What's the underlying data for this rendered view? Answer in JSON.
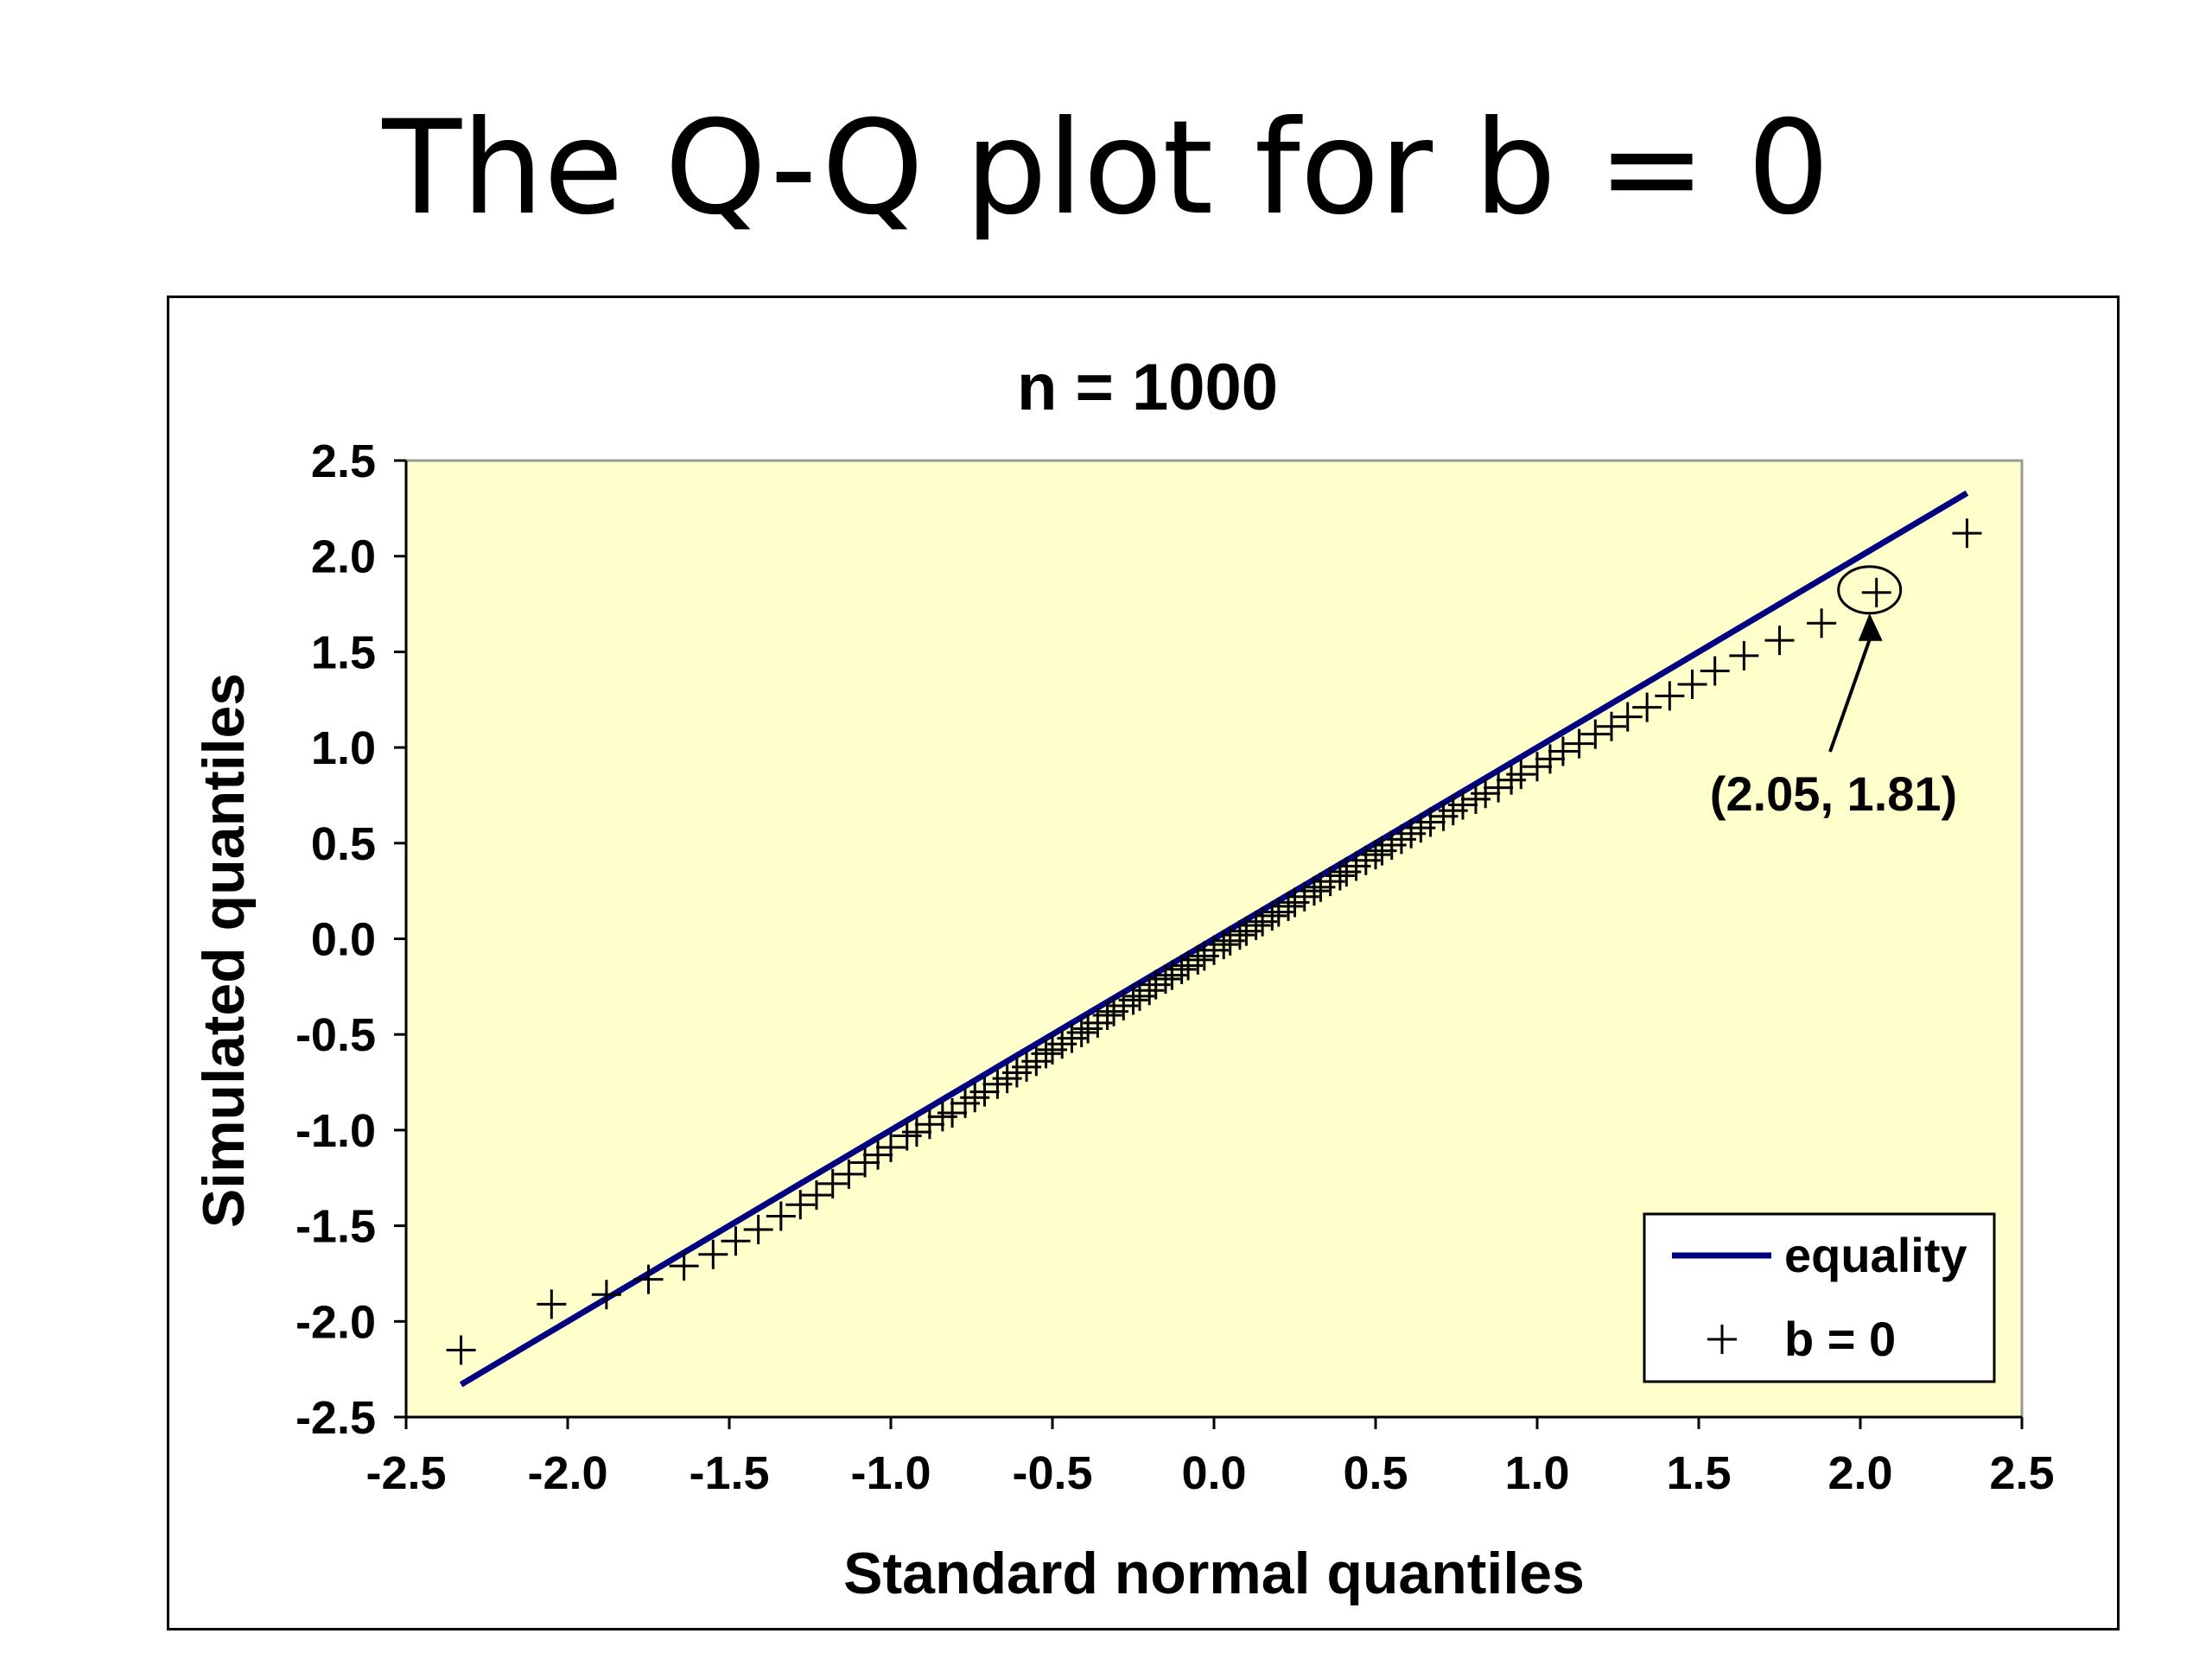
{
  "slide": {
    "title": "The Q-Q plot for b = 0"
  },
  "chart_data": {
    "type": "scatter",
    "title": "n = 1000",
    "xlabel": "Standard normal quantiles",
    "ylabel": "Simulated quantiles",
    "xlim": [
      -2.5,
      2.5
    ],
    "ylim": [
      -2.5,
      2.5
    ],
    "xticks": [
      "-2.5",
      "-2.0",
      "-1.5",
      "-1.0",
      "-0.5",
      "0.0",
      "0.5",
      "1.0",
      "1.5",
      "2.0",
      "2.5"
    ],
    "yticks": [
      "2.5",
      "2.0",
      "1.5",
      "1.0",
      "0.5",
      "0.0",
      "-0.5",
      "-1.0",
      "-1.5",
      "-2.0",
      "-2.5"
    ],
    "plot_background": "#FFFFCC",
    "legend_position": "bottom-right",
    "series": [
      {
        "name": "equality",
        "kind": "line",
        "color": "#000080",
        "x": [
          -2.33,
          2.33
        ],
        "y": [
          -2.33,
          2.33
        ]
      },
      {
        "name": "b = 0",
        "kind": "marker",
        "marker": "+",
        "color": "#000000",
        "x": [
          -2.33,
          -2.05,
          -1.88,
          -1.75,
          -1.64,
          -1.55,
          -1.48,
          -1.41,
          -1.34,
          -1.28,
          -1.23,
          -1.18,
          -1.13,
          -1.08,
          -1.04,
          -1.0,
          -0.95,
          -0.92,
          -0.88,
          -0.84,
          -0.81,
          -0.77,
          -0.74,
          -0.71,
          -0.67,
          -0.64,
          -0.61,
          -0.58,
          -0.55,
          -0.52,
          -0.5,
          -0.47,
          -0.44,
          -0.41,
          -0.39,
          -0.36,
          -0.33,
          -0.31,
          -0.28,
          -0.25,
          -0.23,
          -0.2,
          -0.18,
          -0.15,
          -0.13,
          -0.1,
          -0.08,
          -0.05,
          -0.03,
          0.0,
          0.03,
          0.05,
          0.08,
          0.1,
          0.13,
          0.15,
          0.18,
          0.2,
          0.23,
          0.25,
          0.28,
          0.31,
          0.33,
          0.36,
          0.39,
          0.41,
          0.44,
          0.47,
          0.5,
          0.52,
          0.55,
          0.58,
          0.61,
          0.64,
          0.67,
          0.71,
          0.74,
          0.77,
          0.81,
          0.84,
          0.88,
          0.92,
          0.95,
          1.0,
          1.04,
          1.08,
          1.13,
          1.18,
          1.23,
          1.28,
          1.34,
          1.41,
          1.48,
          1.55,
          1.64,
          1.75,
          1.88,
          2.05,
          2.33
        ],
        "y": [
          -2.15,
          -1.91,
          -1.86,
          -1.78,
          -1.71,
          -1.65,
          -1.58,
          -1.52,
          -1.45,
          -1.39,
          -1.34,
          -1.28,
          -1.23,
          -1.17,
          -1.13,
          -1.09,
          -1.03,
          -1.01,
          -0.97,
          -0.93,
          -0.91,
          -0.86,
          -0.83,
          -0.8,
          -0.76,
          -0.73,
          -0.7,
          -0.67,
          -0.64,
          -0.6,
          -0.58,
          -0.55,
          -0.52,
          -0.49,
          -0.47,
          -0.44,
          -0.4,
          -0.38,
          -0.35,
          -0.32,
          -0.3,
          -0.27,
          -0.24,
          -0.21,
          -0.19,
          -0.16,
          -0.14,
          -0.11,
          -0.09,
          -0.06,
          -0.03,
          -0.01,
          0.02,
          0.04,
          0.07,
          0.09,
          0.12,
          0.14,
          0.17,
          0.19,
          0.22,
          0.25,
          0.27,
          0.3,
          0.33,
          0.35,
          0.38,
          0.41,
          0.44,
          0.46,
          0.49,
          0.52,
          0.55,
          0.58,
          0.61,
          0.64,
          0.67,
          0.7,
          0.73,
          0.76,
          0.79,
          0.83,
          0.86,
          0.9,
          0.94,
          0.98,
          1.02,
          1.07,
          1.11,
          1.16,
          1.21,
          1.27,
          1.33,
          1.4,
          1.48,
          1.56,
          1.65,
          1.81,
          2.12
        ]
      }
    ],
    "annotation": {
      "text": "(2.05, 1.81)",
      "x": 2.05,
      "y": 1.81
    }
  }
}
